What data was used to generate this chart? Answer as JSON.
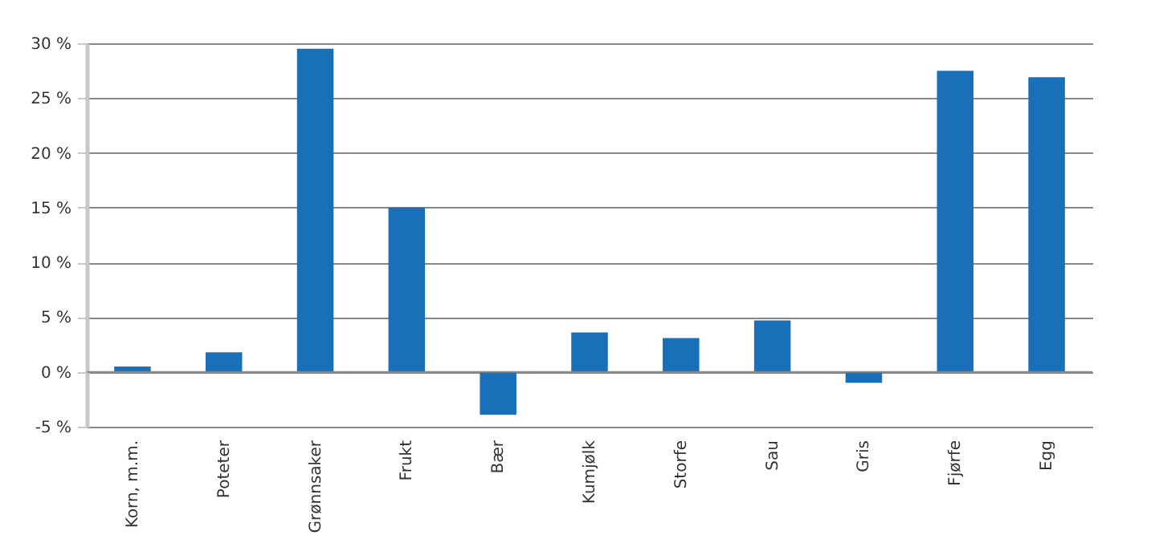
{
  "chart_data": {
    "type": "bar",
    "categories": [
      "Korn, m.m.",
      "Poteter",
      "Grønnsaker",
      "Frukt",
      "Bær",
      "Kumjølk",
      "Storfe",
      "Sau",
      "Gris",
      "Fjørfe",
      "Egg"
    ],
    "values": [
      0.5,
      1.8,
      29.5,
      15.0,
      -3.9,
      3.6,
      3.1,
      4.7,
      -1.0,
      27.5,
      26.9
    ],
    "color": "#1a70b8",
    "ylim": [
      -5,
      30
    ],
    "yticks": [
      {
        "value": -5,
        "label": "-5 %"
      },
      {
        "value": 0,
        "label": "0 %"
      },
      {
        "value": 5,
        "label": "5 %"
      },
      {
        "value": 10,
        "label": "10 %"
      },
      {
        "value": 15,
        "label": "15 %"
      },
      {
        "value": 20,
        "label": "20 %"
      },
      {
        "value": 25,
        "label": "25 %"
      },
      {
        "value": 30,
        "label": "30 %"
      }
    ],
    "grid": "y"
  }
}
